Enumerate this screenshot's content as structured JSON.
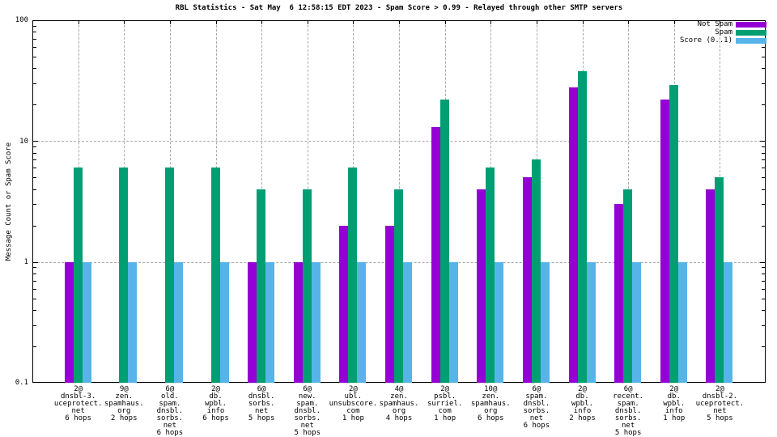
{
  "title": "RBL Statistics - Sat May  6 12:58:15 EDT 2023 - Spam Score > 0.99 - Relayed through other SMTP servers",
  "colors": {
    "background": "#ffffff",
    "axis": "#000000",
    "grid": "#a8a8a8"
  },
  "chart_data": {
    "type": "bar",
    "y_scale": "log",
    "ylim": [
      0.1,
      100
    ],
    "ylabel": "Message Count or Spam Score",
    "ytick_labels": [
      "100",
      "10",
      "1",
      "0.1"
    ],
    "grid": true,
    "legend_position": "top-right inside",
    "legend": [
      {
        "name": "Not Spam",
        "color": "#9400d3"
      },
      {
        "name": "Spam",
        "color": "#009e73"
      },
      {
        "name": "Score (0..1)",
        "color": "#56b4e9"
      }
    ],
    "categories": [
      [
        "2@",
        "dnsbl-3.",
        "uceprotect.",
        "net",
        "6 hops"
      ],
      [
        "9@",
        "zen.",
        "spamhaus.",
        "org",
        "2 hops"
      ],
      [
        "6@",
        "old.",
        "spam.",
        "dnsbl.",
        "sorbs.",
        "net",
        "6 hops"
      ],
      [
        "2@",
        "db.",
        "wpbl.",
        "info",
        "6 hops"
      ],
      [
        "6@",
        "dnsbl.",
        "sorbs.",
        "net",
        "5 hops"
      ],
      [
        "6@",
        "new.",
        "spam.",
        "dnsbl.",
        "sorbs.",
        "net",
        "5 hops"
      ],
      [
        "2@",
        "ubl.",
        "unsubscore.",
        "com",
        "1 hop"
      ],
      [
        "4@",
        "zen.",
        "spamhaus.",
        "org",
        "4 hops"
      ],
      [
        "2@",
        "psbl.",
        "surriel.",
        "com",
        "1 hop"
      ],
      [
        "10@",
        "zen.",
        "spamhaus.",
        "org",
        "6 hops"
      ],
      [
        "6@",
        "spam.",
        "dnsbl.",
        "sorbs.",
        "net",
        "6 hops"
      ],
      [
        "2@",
        "db.",
        "wpbl.",
        "info",
        "2 hops"
      ],
      [
        "6@",
        "recent.",
        "spam.",
        "dnsbl.",
        "sorbs.",
        "net",
        "5 hops"
      ],
      [
        "2@",
        "db.",
        "wpbl.",
        "info",
        "1 hop"
      ],
      [
        "2@",
        "dnsbl-2.",
        "uceprotect.",
        "net",
        "5 hops"
      ]
    ],
    "series": [
      {
        "name": "Not Spam",
        "color": "#9400d3",
        "values": [
          1,
          null,
          null,
          null,
          1,
          1,
          2,
          2,
          13,
          4,
          5,
          28,
          3,
          22,
          4
        ]
      },
      {
        "name": "Spam",
        "color": "#009e73",
        "values": [
          6,
          6,
          6,
          6,
          4,
          4,
          6,
          4,
          22,
          6,
          7,
          38,
          4,
          29,
          5
        ]
      },
      {
        "name": "Score (0..1)",
        "color": "#56b4e9",
        "values": [
          1,
          1,
          1,
          1,
          1,
          1,
          1,
          1,
          1,
          1,
          1,
          1,
          1,
          1,
          1
        ]
      }
    ]
  }
}
